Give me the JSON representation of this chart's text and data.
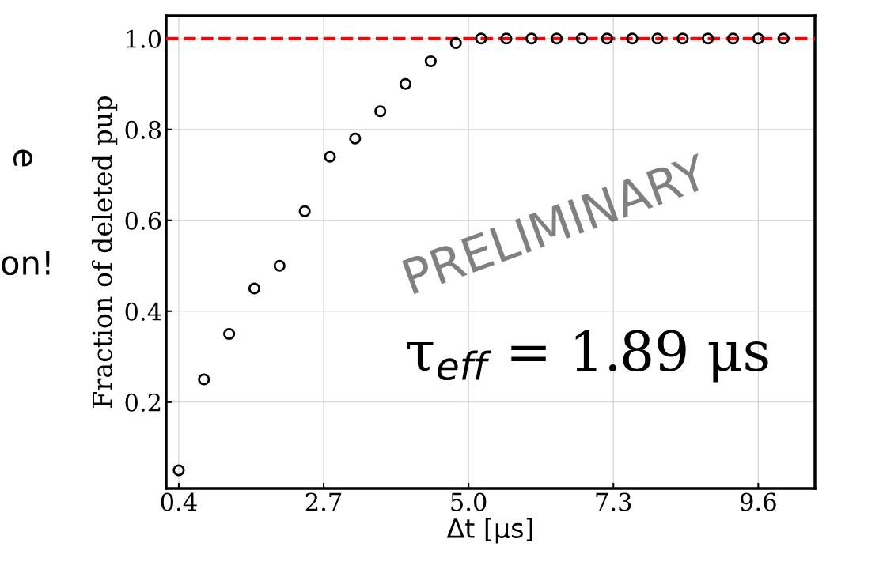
{
  "chart_data": {
    "type": "scatter",
    "ylabel": "Fraction of deleted pup",
    "xlabel": "Δt [μs]",
    "x": [
      0.4,
      0.8,
      1.2,
      1.6,
      2.0,
      2.4,
      2.8,
      3.2,
      3.6,
      4.0,
      4.4,
      4.8,
      5.2,
      5.6,
      6.0,
      6.4,
      6.8,
      7.2,
      7.6,
      8.0,
      8.4,
      8.8,
      9.2,
      9.6,
      10.0
    ],
    "series": [
      {
        "color": "#000000",
        "values": [
          0.05,
          0.25,
          0.35,
          0.45,
          0.5,
          0.62,
          0.74,
          0.78,
          0.84,
          0.9,
          0.95,
          0.99,
          1.0,
          1.0,
          1.0,
          1.0,
          1.0,
          1.0,
          1.0,
          1.0,
          1.0,
          1.0,
          1.0,
          1.0,
          1.0
        ]
      }
    ],
    "marker": "circle",
    "grid": true,
    "xlim": [
      0.2,
      10.5
    ],
    "xticks": [
      0.4,
      2.7,
      {
        "value": 5,
        "label": "5.0"
      },
      7.3,
      9.6
    ],
    "ylim": [
      0.01,
      1.05
    ],
    "yticks": [
      0.2,
      0.4,
      0.6,
      0.8,
      {
        "value": 1,
        "label": "1.0"
      }
    ],
    "ref_lines": [
      {
        "axis": "y",
        "value": 1.0,
        "color": "#ff0000",
        "line_style": "dashed"
      }
    ],
    "annotations": [
      "PRELIMINARY",
      "τ$_{eff}$ = 1.89 μs",
      "e",
      "on!"
    ]
  }
}
